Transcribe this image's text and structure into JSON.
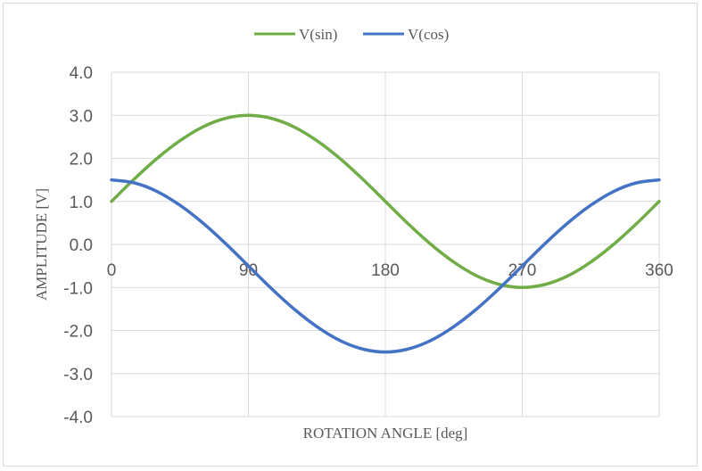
{
  "chart_data": {
    "type": "line",
    "xlabel": "ROTATION ANGLE [deg]",
    "ylabel": "AMPLITUDE [V]",
    "xlim": [
      0,
      360
    ],
    "ylim": [
      -4,
      4
    ],
    "x_ticks": [
      0,
      90,
      180,
      270,
      360
    ],
    "y_ticks": [
      "4.0",
      "3.0",
      "2.0",
      "1.0",
      "0.0",
      "-1.0",
      "-2.0",
      "-3.0",
      "-4.0"
    ],
    "grid": true,
    "legend_position": "top",
    "x": [
      0,
      15,
      30,
      45,
      60,
      75,
      90,
      105,
      120,
      135,
      150,
      165,
      180,
      195,
      210,
      225,
      240,
      255,
      270,
      285,
      300,
      315,
      330,
      345,
      360
    ],
    "series": [
      {
        "name": "V(sin)",
        "color": "#70ad47",
        "values": [
          1.0,
          1.52,
          2.0,
          2.41,
          2.73,
          2.93,
          3.0,
          2.93,
          2.73,
          2.41,
          2.0,
          1.52,
          1.0,
          0.48,
          0.0,
          -0.41,
          -0.73,
          -0.93,
          -1.0,
          -0.93,
          -0.73,
          -0.41,
          0.0,
          0.48,
          1.0
        ]
      },
      {
        "name": "V(cos)",
        "color": "#4472c4",
        "values": [
          1.5,
          1.43,
          1.23,
          0.91,
          0.5,
          0.02,
          -0.5,
          -1.02,
          -1.5,
          -1.91,
          -2.23,
          -2.43,
          -2.5,
          -2.43,
          -2.23,
          -1.91,
          -1.5,
          -1.02,
          -0.5,
          0.02,
          0.5,
          0.91,
          1.23,
          1.43,
          1.5
        ]
      }
    ]
  }
}
